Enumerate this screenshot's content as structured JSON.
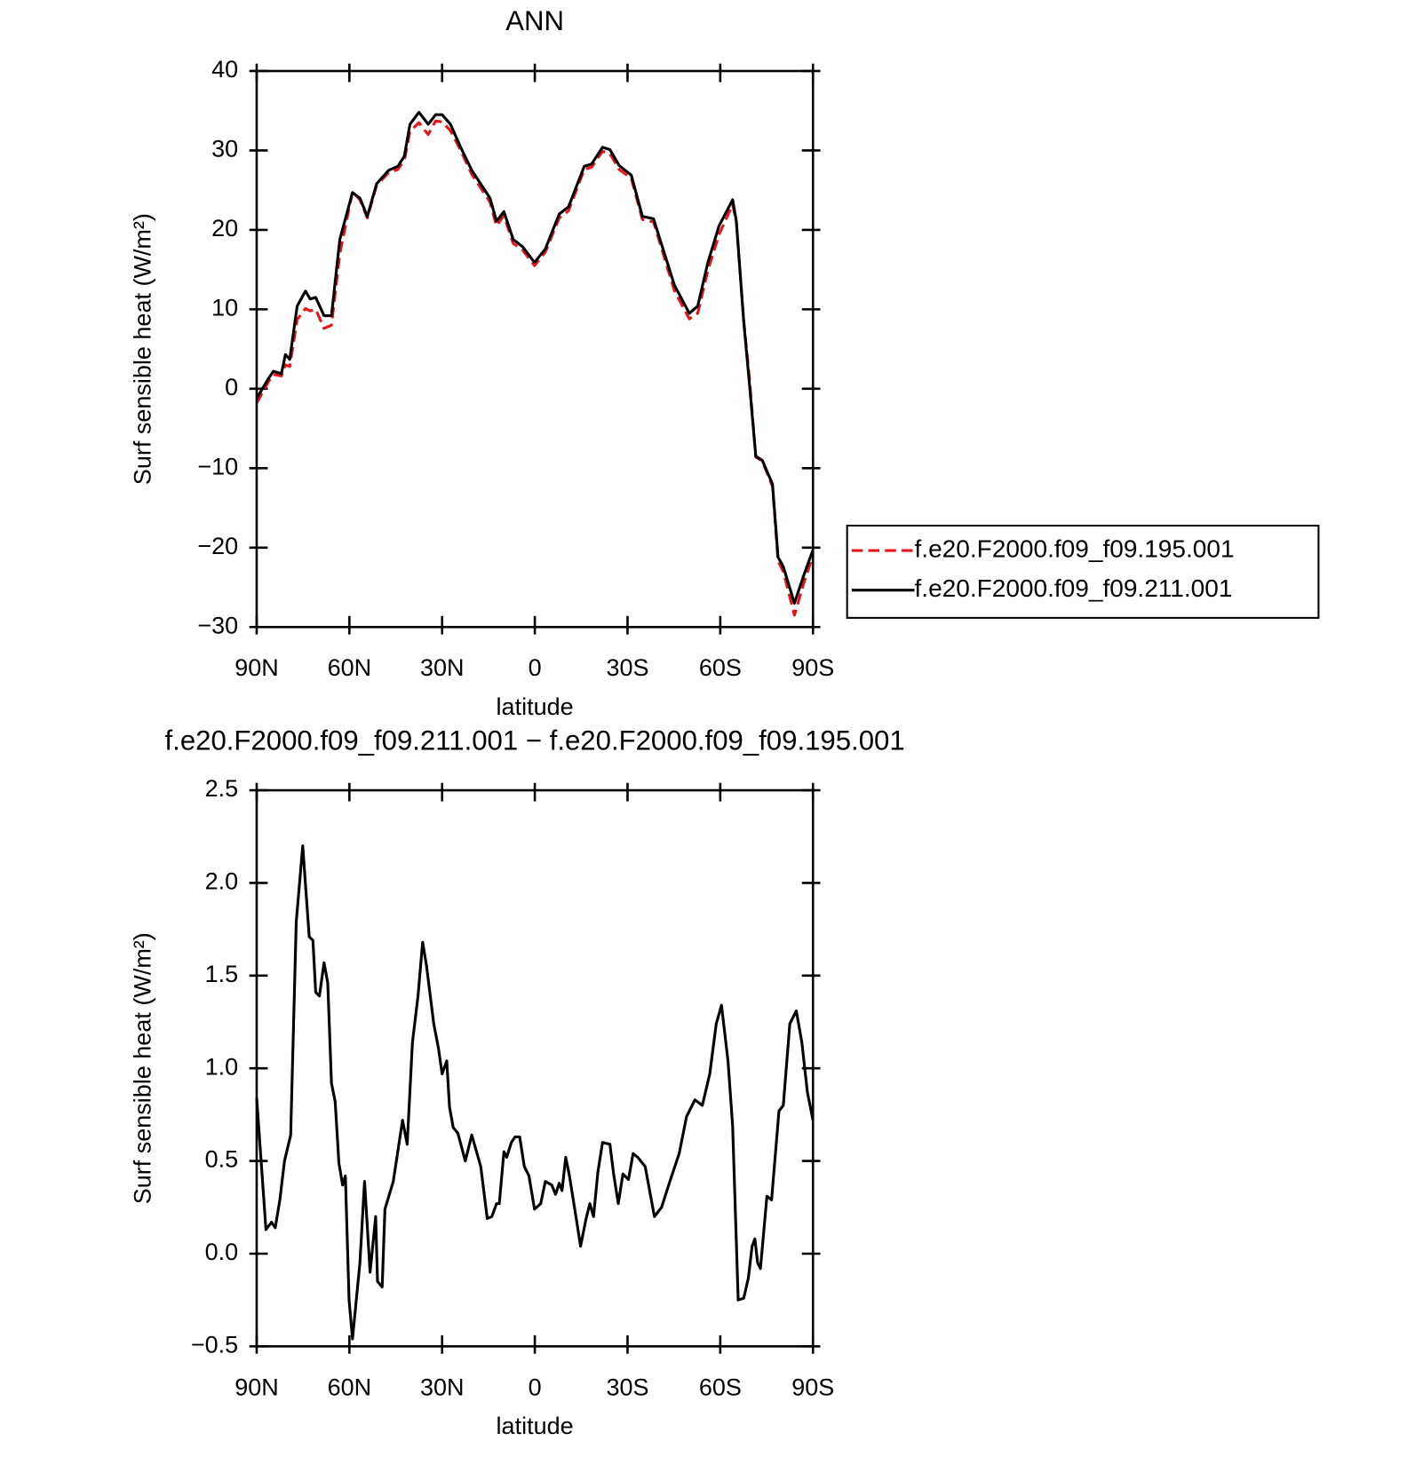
{
  "chart_data": [
    {
      "type": "line",
      "title": "ANN",
      "xlabel": "latitude",
      "ylabel": "Surf sensible heat (W/m²)",
      "xlim": [
        90,
        -90
      ],
      "xticks": [
        {
          "value": 90,
          "label": "90N"
        },
        {
          "value": 60,
          "label": "60N"
        },
        {
          "value": 30,
          "label": "30N"
        },
        0,
        {
          "value": -30,
          "label": "30S"
        },
        {
          "value": -60,
          "label": "60S"
        },
        {
          "value": -90,
          "label": "90S"
        }
      ],
      "ylim": [
        -30,
        40
      ],
      "yticks": [
        {
          "value": -30,
          "label": "−30"
        },
        {
          "value": -20,
          "label": "−20"
        },
        {
          "value": -10,
          "label": "−10"
        },
        0,
        10,
        20,
        30,
        40
      ],
      "legend": "right",
      "x": [
        90,
        86,
        84.6,
        82,
        80.7,
        79.3,
        76.9,
        74.2,
        72.7,
        70.9,
        68.2,
        65.8,
        63.1,
        59,
        56.6,
        54.2,
        51.2,
        47.3,
        44.3,
        42.2,
        40.4,
        37.5,
        34.5,
        32.1,
        30,
        27.3,
        24,
        20.4,
        14.5,
        12.4,
        10,
        7,
        4,
        0.1,
        -3.4,
        -7.9,
        -10.9,
        -16,
        -18.4,
        -21.9,
        -24.3,
        -27.3,
        -31.2,
        -34.8,
        -38.4,
        -45.2,
        -50,
        -52.7,
        -56,
        -59.6,
        -64,
        -65.2,
        -67.6,
        -69.4,
        -71.5,
        -73.6,
        -76.9,
        -78.7,
        -80.4,
        -84,
        -87,
        -90
      ],
      "series": [
        {
          "name": "f.e20.F2000.f09_f09.195.001",
          "color": "#e8141c",
          "line_style": "dashed",
          "values": [
            -1.8,
            1.0,
            1.8,
            1.6,
            3.0,
            2.8,
            8.7,
            10.1,
            9.8,
            10.0,
            7.6,
            8.0,
            17.0,
            24.8,
            23.8,
            21.5,
            25.6,
            27.2,
            27.6,
            28.8,
            32.4,
            33.5,
            32,
            33.7,
            33.6,
            32.5,
            30,
            27,
            23.5,
            20.5,
            21.8,
            18.3,
            17.5,
            15.5,
            17.2,
            21.5,
            22.4,
            27.6,
            27.9,
            29.9,
            29.6,
            27.6,
            26.5,
            21.3,
            21,
            12.3,
            8.8,
            9.5,
            14.9,
            19.4,
            23.2,
            21,
            8.6,
            1.5,
            -8.6,
            -9.1,
            -12.3,
            -21.7,
            -23,
            -28.5,
            -24.5,
            -21
          ]
        },
        {
          "name": "f.e20.F2000.f09_f09.211.001",
          "color": "#000000",
          "line_style": "solid",
          "values": [
            -1.2,
            1.4,
            2.2,
            1.9,
            4.3,
            3.7,
            10.4,
            12.3,
            11.3,
            11.5,
            9.2,
            9.2,
            18.8,
            24.7,
            24,
            21.7,
            25.8,
            27.5,
            28,
            29.3,
            33.3,
            34.8,
            33.3,
            34.5,
            34.5,
            33.3,
            30.4,
            27.5,
            24,
            21.1,
            22.3,
            18.8,
            17.9,
            15.9,
            17.6,
            22,
            22.9,
            28,
            28.3,
            30.4,
            30.1,
            28.1,
            26.9,
            21.7,
            21.4,
            13,
            9.5,
            10.4,
            15.9,
            20.5,
            23.8,
            21.1,
            8.4,
            0.8,
            -8.5,
            -9,
            -12,
            -21.2,
            -22.4,
            -27,
            -23.5,
            -20.3
          ]
        }
      ]
    },
    {
      "type": "line",
      "title": "f.e20.F2000.f09_f09.211.001 − f.e20.F2000.f09_f09.195.001",
      "xlabel": "latitude",
      "ylabel": "Surf sensible heat (W/m²)",
      "xlim": [
        90,
        -90
      ],
      "xticks": [
        {
          "value": 90,
          "label": "90N"
        },
        {
          "value": 60,
          "label": "60N"
        },
        {
          "value": 30,
          "label": "30N"
        },
        0,
        {
          "value": -30,
          "label": "30S"
        },
        {
          "value": -60,
          "label": "60S"
        },
        {
          "value": -90,
          "label": "90S"
        }
      ],
      "ylim": [
        -0.5,
        2.5
      ],
      "yticks": [
        {
          "value": -0.5,
          "label": "−0.5"
        },
        {
          "value": 0,
          "label": "0.0"
        },
        0.5,
        {
          "value": 1,
          "label": "1.0"
        },
        1.5,
        {
          "value": 2,
          "label": "2.0"
        },
        2.5
      ],
      "color": "#000000",
      "x": [
        90,
        87,
        85.2,
        84,
        82.5,
        81,
        79,
        77.2,
        75.1,
        73,
        71.8,
        70.9,
        69.7,
        68.2,
        67,
        65.8,
        64.6,
        63.4,
        62.2,
        61.3,
        60.1,
        59,
        56.6,
        55.1,
        53.3,
        51.5,
        50.9,
        49.4,
        48.5,
        45.8,
        42.8,
        41.3,
        39.6,
        37.8,
        36.3,
        35.1,
        32.7,
        31.2,
        30,
        28.5,
        27.6,
        26.4,
        24.9,
        22.5,
        20.4,
        17.5,
        15.4,
        13.9,
        12.4,
        11.5,
        10,
        9.1,
        7.6,
        6.4,
        4.9,
        3.4,
        1.9,
        0.1,
        -1.9,
        -3.4,
        -5.5,
        -6.7,
        -7.9,
        -8.8,
        -10,
        -11.2,
        -13.3,
        -14.8,
        -16.6,
        -17.8,
        -19,
        -20.4,
        -21.9,
        -24.3,
        -25.5,
        -27,
        -28.5,
        -30.3,
        -31.8,
        -33.3,
        -35.7,
        -38.7,
        -41,
        -43.7,
        -46.7,
        -49.1,
        -51.8,
        -54.2,
        -56.6,
        -58.7,
        -60.4,
        -62.5,
        -64,
        -65.8,
        -67.6,
        -69.1,
        -70.3,
        -71.2,
        -72.1,
        -73,
        -75.1,
        -76.6,
        -79,
        -80.4,
        -82.5,
        -84.6,
        -86.4,
        -88.2,
        -90
      ],
      "values": [
        0.84,
        0.13,
        0.17,
        0.14,
        0.29,
        0.5,
        0.64,
        1.79,
        2.2,
        1.71,
        1.69,
        1.41,
        1.39,
        1.57,
        1.46,
        0.92,
        0.82,
        0.49,
        0.37,
        0.42,
        -0.25,
        -0.46,
        -0.05,
        0.39,
        -0.1,
        0.2,
        -0.15,
        -0.18,
        0.24,
        0.39,
        0.72,
        0.59,
        1.14,
        1.39,
        1.68,
        1.56,
        1.24,
        1.11,
        0.97,
        1.04,
        0.79,
        0.68,
        0.65,
        0.5,
        0.64,
        0.47,
        0.19,
        0.2,
        0.27,
        0.27,
        0.55,
        0.52,
        0.6,
        0.63,
        0.63,
        0.47,
        0.42,
        0.24,
        0.27,
        0.39,
        0.37,
        0.32,
        0.38,
        0.34,
        0.52,
        0.42,
        0.2,
        0.04,
        0.19,
        0.27,
        0.2,
        0.44,
        0.6,
        0.59,
        0.43,
        0.27,
        0.43,
        0.4,
        0.54,
        0.52,
        0.47,
        0.2,
        0.25,
        0.39,
        0.54,
        0.74,
        0.83,
        0.8,
        0.97,
        1.24,
        1.34,
        1.04,
        0.69,
        -0.25,
        -0.24,
        -0.13,
        0.04,
        0.08,
        -0.05,
        -0.08,
        0.31,
        0.29,
        0.77,
        0.8,
        1.24,
        1.31,
        1.14,
        0.87,
        0.72
      ]
    }
  ]
}
